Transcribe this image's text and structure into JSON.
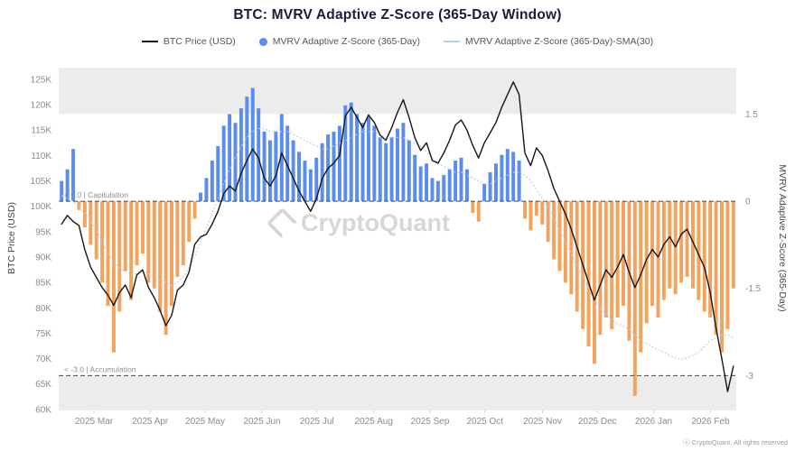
{
  "title": "BTC: MVRV Adaptive Z-Score (365-Day Window)",
  "legend": {
    "items": [
      {
        "label": "BTC Price (USD)",
        "swatch": "black-line"
      },
      {
        "label": "MVRV Adaptive Z-Score (365-Day)",
        "swatch": "blue-dot"
      },
      {
        "label": "MVRV Adaptive Z-Score (365-Day)-SMA(30)",
        "swatch": "lightblue-line"
      }
    ]
  },
  "watermark": "CryptoQuant",
  "footer": "ⓒ CryptoQuant. All rights reserved",
  "chart_data": {
    "type": "bar+line combo (bars = z-score, black line = BTC price, dotted line = SMA30 of z-score)",
    "title": "BTC: MVRV Adaptive Z-Score (365-Day Window)",
    "price_axis": {
      "label": "BTC Price (USD)",
      "min": 59.8,
      "max": 127.3,
      "ticks": [
        125,
        120,
        115,
        110,
        105,
        100,
        95,
        90,
        85,
        80,
        75,
        70,
        65,
        60
      ],
      "tick_suffix": "K"
    },
    "z_axis": {
      "label": "MVRV Adaptive Z-Score (365-Day)",
      "min": -3.6,
      "max": 2.3,
      "ticks": [
        1.5,
        0,
        -1.5,
        -3
      ]
    },
    "bands": {
      "upper_z": 1.5,
      "lower_z": -3.0
    },
    "dashed_lines": [
      0,
      -3
    ],
    "annotations": [
      {
        "text": "< 0.0 | Capitulation",
        "z": 0
      },
      {
        "text": "< -3.0 | Accumulation",
        "z": -3
      }
    ],
    "x_ticks": [
      {
        "label": "2025 Mar",
        "f": 0.052
      },
      {
        "label": "2025 Apr",
        "f": 0.135
      },
      {
        "label": "2025 May",
        "f": 0.216
      },
      {
        "label": "2025 Jun",
        "f": 0.3
      },
      {
        "label": "2025 Jul",
        "f": 0.381
      },
      {
        "label": "2025 Aug",
        "f": 0.465
      },
      {
        "label": "2025 Sep",
        "f": 0.548
      },
      {
        "label": "2025 Oct",
        "f": 0.629
      },
      {
        "label": "2025 Nov",
        "f": 0.714
      },
      {
        "label": "2025 Dec",
        "f": 0.795
      },
      {
        "label": "2026 Jan",
        "f": 0.878
      },
      {
        "label": "2026 Feb",
        "f": 0.962
      }
    ],
    "series": {
      "price_usd_k": [
        96.5,
        98.2,
        97,
        96.2,
        91.5,
        88,
        86,
        84,
        82.5,
        80.5,
        83,
        84.5,
        82,
        86.5,
        87.5,
        84,
        82,
        79.5,
        76.5,
        78.5,
        83.5,
        84.5,
        87,
        92.5,
        94,
        94.5,
        96.5,
        99,
        102.5,
        104,
        103,
        106.5,
        109,
        111.3,
        109.5,
        105.5,
        104,
        106,
        110.5,
        108,
        105.5,
        103,
        101,
        99,
        101.5,
        105.5,
        107.5,
        108.5,
        110,
        117.8,
        119.5,
        117.5,
        115.5,
        118,
        116.5,
        114,
        113,
        115.5,
        118.5,
        121,
        117.5,
        113.5,
        111,
        112.5,
        109,
        108.5,
        110.5,
        113,
        116,
        117,
        115,
        112,
        109.5,
        112.5,
        114.5,
        116.5,
        119.5,
        122,
        124.5,
        122,
        110.5,
        108,
        111.5,
        110,
        107,
        103.5,
        101,
        98.5,
        95.5,
        92,
        88.5,
        85,
        81.5,
        84.5,
        87.5,
        86,
        88,
        90.5,
        87,
        84,
        86.5,
        89.5,
        91.5,
        90,
        92.5,
        94,
        92,
        94.5,
        95.5,
        93,
        90.5,
        88,
        83,
        76,
        70,
        63.5,
        68.5
      ],
      "z_score": [
        0.35,
        0.55,
        0.9,
        -0.15,
        -0.45,
        -0.75,
        -1,
        -1.4,
        -1.8,
        -2.6,
        -1.9,
        -1.2,
        -1.7,
        -1.1,
        -0.9,
        -1.4,
        -1.5,
        -1.9,
        -2.3,
        -1.8,
        -1.3,
        -1.1,
        -0.7,
        -0.3,
        0.15,
        0.4,
        0.7,
        0.95,
        1.3,
        1.5,
        1.35,
        1.6,
        1.8,
        1.95,
        1.6,
        1.2,
        1.05,
        1.2,
        1.5,
        1.3,
        1.05,
        0.85,
        0.7,
        0.55,
        0.75,
        1,
        1.15,
        1.2,
        1.3,
        1.65,
        1.7,
        1.5,
        1.35,
        1.45,
        1.3,
        1.1,
        1,
        1.1,
        1.25,
        1.35,
        1.05,
        0.8,
        0.6,
        0.65,
        0.4,
        0.35,
        0.45,
        0.55,
        0.7,
        0.75,
        0.55,
        -0.2,
        -0.35,
        0.3,
        0.5,
        0.65,
        0.8,
        0.9,
        0.85,
        0.7,
        -0.3,
        -0.5,
        -0.25,
        -0.4,
        -0.7,
        -1,
        -1.2,
        -1.4,
        -1.6,
        -1.9,
        -2.2,
        -2.5,
        -2.8,
        -2.3,
        -2,
        -2.2,
        -2,
        -1.8,
        -2.4,
        -3.35,
        -2.6,
        -2.1,
        -1.8,
        -2,
        -1.7,
        -1.5,
        -1.6,
        -1.4,
        -1.3,
        -1.5,
        -1.7,
        -1.9,
        -2,
        -2.3,
        -2.6,
        -2.2,
        -1.5
      ],
      "sma30": [
        0.1,
        0.05,
        0,
        -0.1,
        -0.2,
        -0.35,
        -0.5,
        -0.7,
        -0.9,
        -1.05,
        -1.15,
        -1.2,
        -1.25,
        -1.25,
        -1.2,
        -1.25,
        -1.3,
        -1.35,
        -1.4,
        -1.45,
        -1.4,
        -1.3,
        -1.15,
        -0.95,
        -0.7,
        -0.45,
        -0.2,
        0.05,
        0.3,
        0.55,
        0.75,
        0.95,
        1.1,
        1.2,
        1.25,
        1.25,
        1.2,
        1.2,
        1.2,
        1.2,
        1.15,
        1.1,
        1.05,
        1,
        0.95,
        0.9,
        0.9,
        0.95,
        1,
        1.05,
        1.1,
        1.15,
        1.2,
        1.2,
        1.2,
        1.15,
        1.1,
        1.1,
        1.1,
        1.1,
        1.05,
        1,
        0.95,
        0.85,
        0.75,
        0.65,
        0.6,
        0.55,
        0.5,
        0.5,
        0.45,
        0.4,
        0.35,
        0.3,
        0.3,
        0.35,
        0.4,
        0.45,
        0.5,
        0.5,
        0.45,
        0.35,
        0.2,
        0.05,
        -0.1,
        -0.3,
        -0.5,
        -0.7,
        -0.9,
        -1.1,
        -1.3,
        -1.5,
        -1.7,
        -1.85,
        -1.95,
        -2.05,
        -2.1,
        -2.15,
        -2.2,
        -2.3,
        -2.4,
        -2.45,
        -2.5,
        -2.55,
        -2.6,
        -2.65,
        -2.7,
        -2.72,
        -2.7,
        -2.65,
        -2.6,
        -2.5,
        -2.4,
        -2.35,
        -2.3,
        -2.3,
        -2.35
      ]
    },
    "colors": {
      "price_line": "#161616",
      "bar_positive": "#5b8def",
      "bar_negative": "#f2a45e",
      "sma_line": "#b7cdf2",
      "band": "#ececec",
      "dashed_line": "#4a4a4a",
      "tick_label": "#8c8c8c",
      "annotation": "#909090"
    },
    "legend_position": "top",
    "grid": false
  }
}
